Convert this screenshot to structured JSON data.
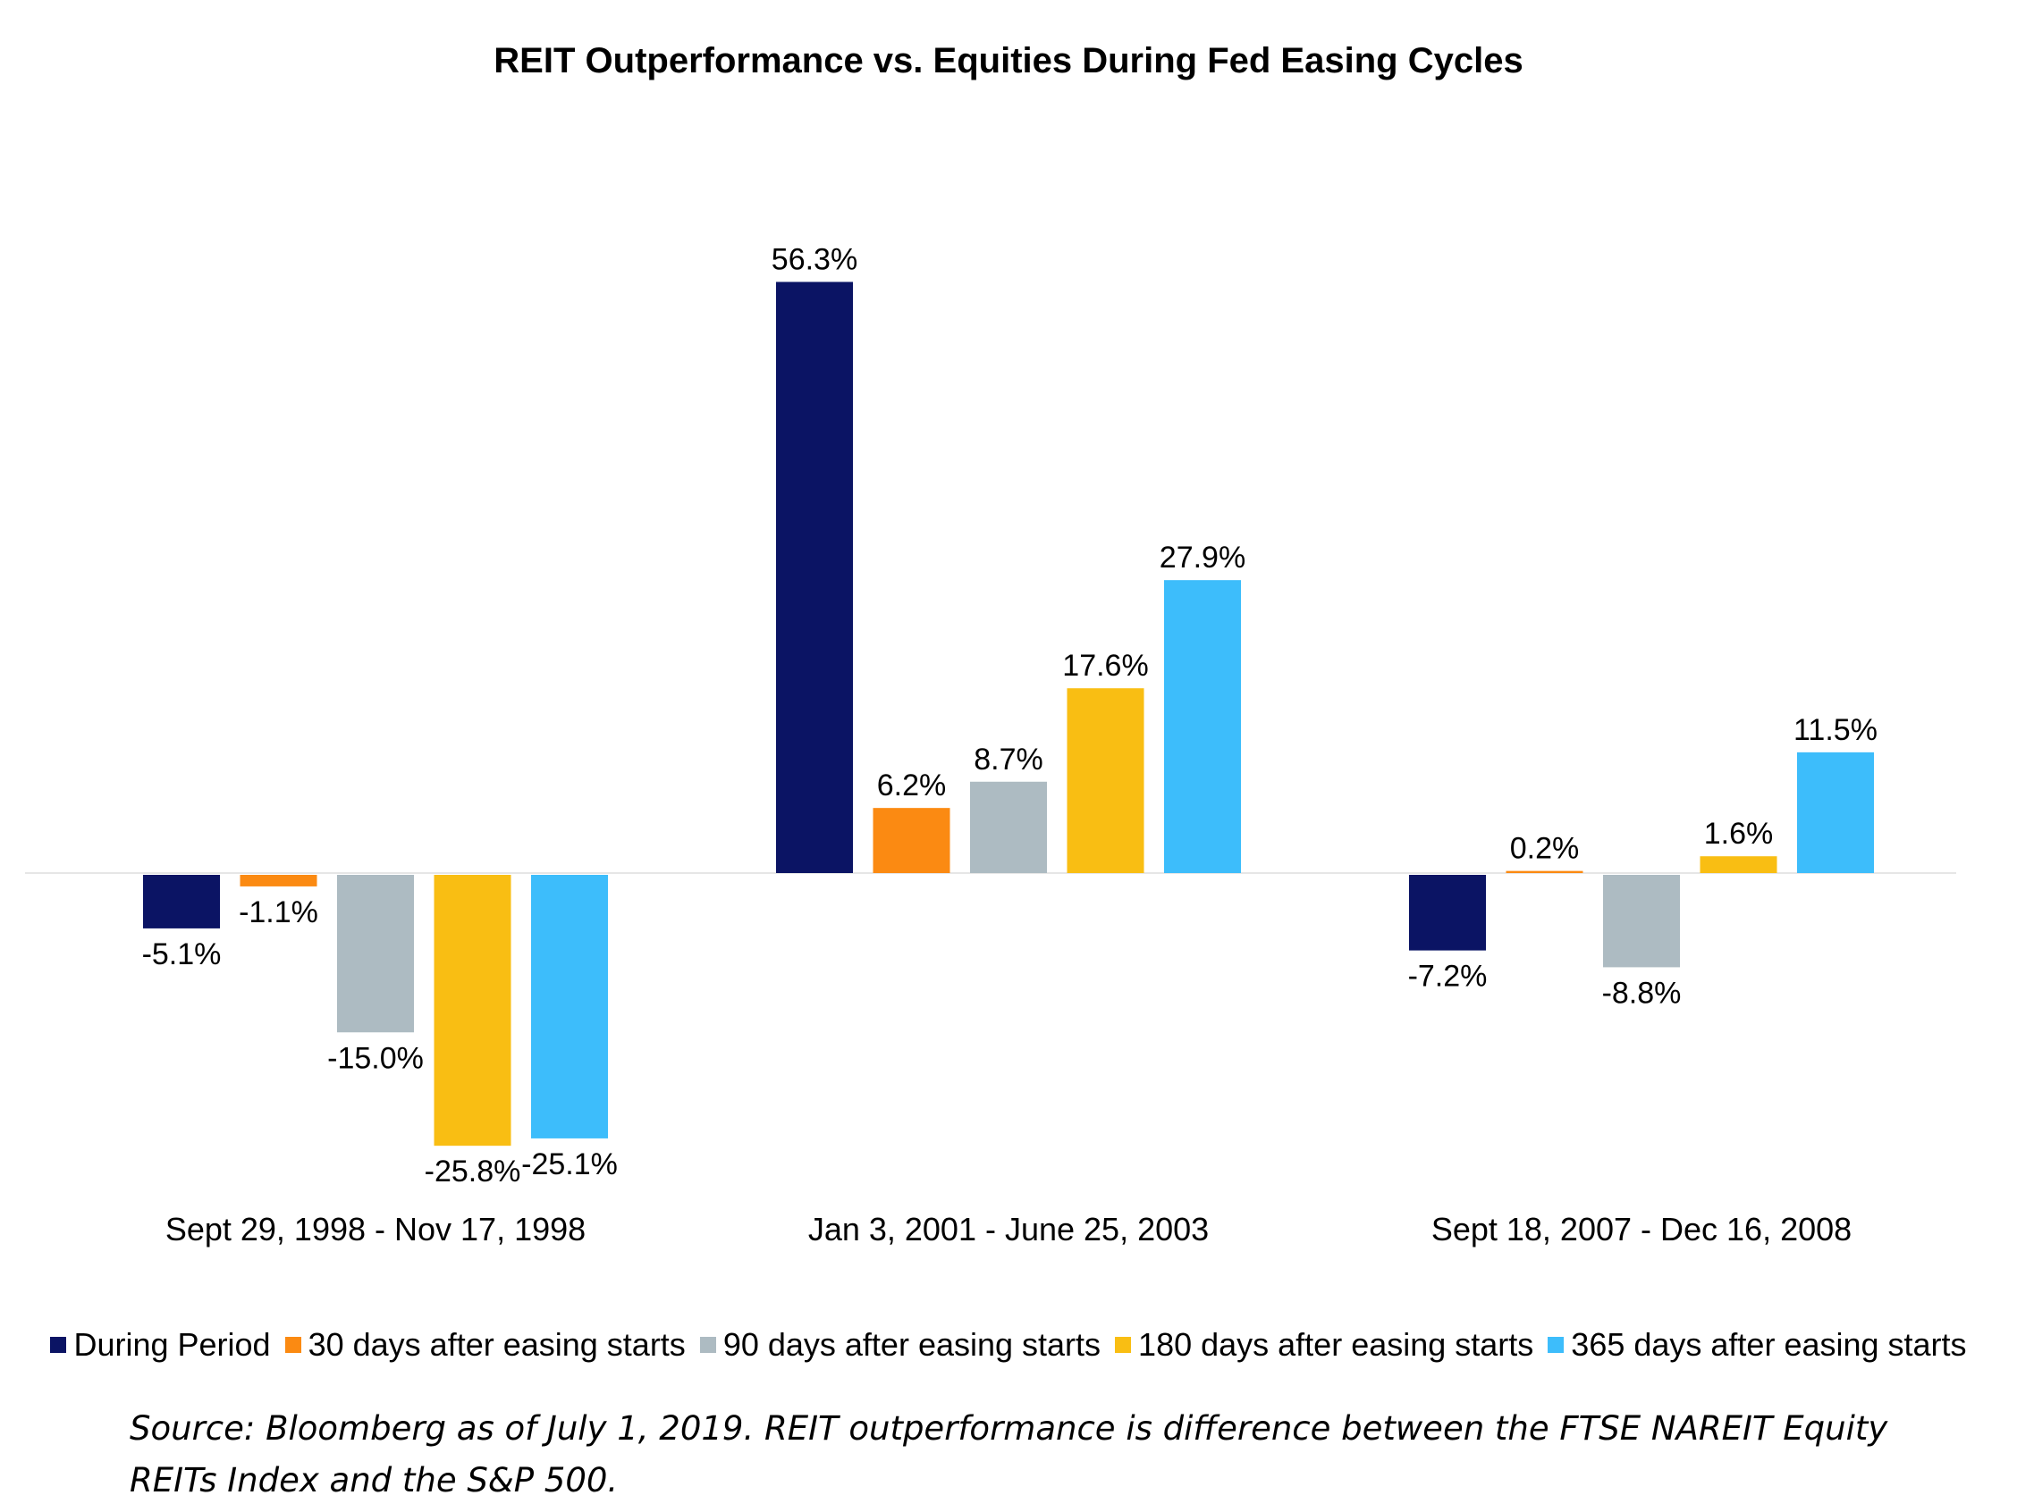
{
  "chart_data": {
    "type": "bar",
    "title": "REIT Outperformance vs. Equities During Fed Easing Cycles",
    "categories": [
      "Sept 29, 1998 - Nov 17, 1998",
      "Jan 3, 2001 - June 25, 2003",
      "Sept 18, 2007 - Dec 16, 2008"
    ],
    "series": [
      {
        "name": "During Period",
        "color": "#0b1464",
        "values": [
          -5.1,
          56.3,
          -7.2
        ],
        "labels": [
          "-5.1%",
          "56.3%",
          "-7.2%"
        ]
      },
      {
        "name": "30 days after easing starts",
        "color": "#fb8a12",
        "values": [
          -1.1,
          6.2,
          0.2
        ],
        "labels": [
          "-1.1%",
          "6.2%",
          "0.2%"
        ]
      },
      {
        "name": "90 days after easing starts",
        "color": "#adbbc2",
        "values": [
          -15.0,
          8.7,
          -8.8
        ],
        "labels": [
          "-15.0%",
          "8.7%",
          "-8.8%"
        ]
      },
      {
        "name": "180 days after easing starts",
        "color": "#f9be13",
        "values": [
          -25.8,
          17.6,
          1.6
        ],
        "labels": [
          "-25.8%",
          "17.6%",
          "1.6%"
        ]
      },
      {
        "name": "365 days after easing starts",
        "color": "#3dbdfb",
        "values": [
          -25.1,
          27.9,
          11.5
        ],
        "labels": [
          "-25.1%",
          "27.9%",
          "11.5%"
        ]
      }
    ],
    "xlabel": "",
    "ylabel": "",
    "ylim": [
      -30,
      60
    ],
    "grid": false,
    "legend_position": "bottom"
  },
  "source_note": "Source: Bloomberg as of July 1, 2019. REIT outperformance is difference between the FTSE NAREIT Equity REITs Index and the S&P 500."
}
